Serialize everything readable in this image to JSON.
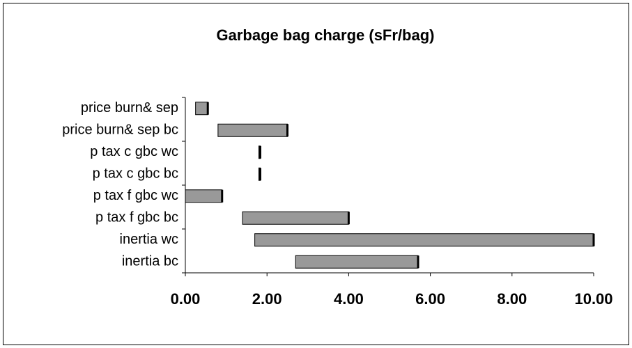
{
  "chart_data": {
    "type": "range",
    "title": "Garbage bag charge (sFr/bag)",
    "categories": [
      "price burn& sep",
      "price burn& sep bc",
      "p tax c gbc wc",
      "p tax c gbc bc",
      "p tax f gbc wc",
      "p tax f gbc bc",
      "inertia wc",
      "inertia bc"
    ],
    "low": [
      0.25,
      0.8,
      1.8,
      1.8,
      0,
      1.4,
      1.7,
      2.7
    ],
    "high": [
      0.55,
      2.5,
      1.8,
      1.8,
      0.9,
      4.0,
      10,
      5.7
    ],
    "color": "#999999",
    "xlim": [
      0,
      10
    ],
    "xticks": [
      {
        "value": 0,
        "label": "0.00"
      },
      {
        "value": 2,
        "label": "2.00"
      },
      {
        "value": 4,
        "label": "4.00"
      },
      {
        "value": 6,
        "label": "6.00"
      },
      {
        "value": 8,
        "label": "8.00"
      },
      {
        "value": 10,
        "label": "10.00"
      }
    ]
  }
}
